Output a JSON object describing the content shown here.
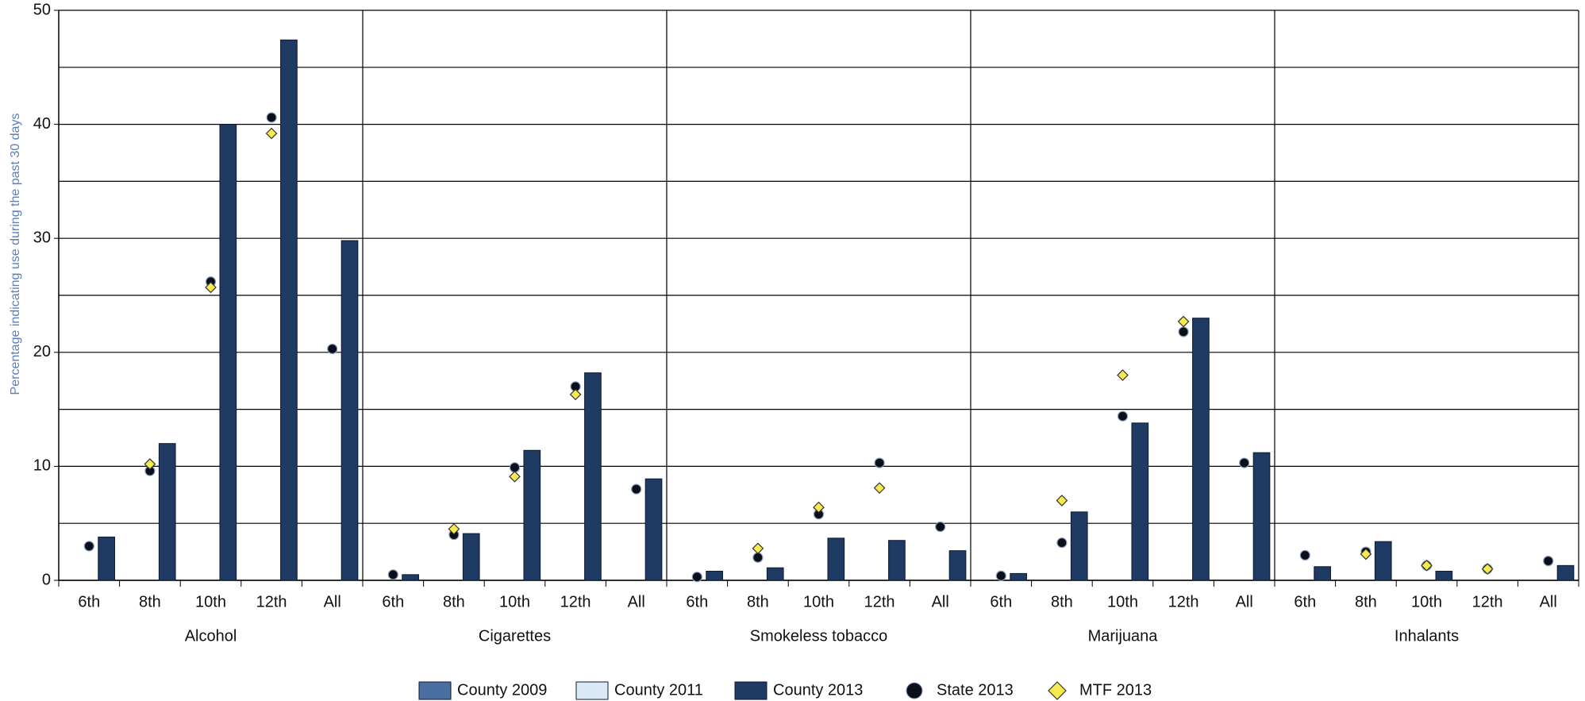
{
  "chart_data": {
    "type": "grouped-bar",
    "y_axis_label": "Percentage indicating use during the past 30 days",
    "groups": [
      "Alcohol",
      "Cigarettes",
      "Smokeless tobacco",
      "Marijuana",
      "Inhalants"
    ],
    "categories": [
      "6th",
      "8th",
      "10th",
      "12th",
      "All"
    ],
    "ylim": [
      0,
      50
    ],
    "yticks": [
      0,
      10,
      20,
      30,
      40,
      50
    ],
    "yticks_minor": [
      5,
      15,
      25,
      35,
      45
    ],
    "grid": true,
    "legend": "bottom",
    "series": [
      {
        "name": "County 2009",
        "kind": "bar",
        "color": "#4a6fa0",
        "values": [
          [
            null,
            null,
            null,
            null,
            null
          ],
          [
            null,
            null,
            null,
            null,
            null
          ],
          [
            null,
            null,
            null,
            null,
            null
          ],
          [
            null,
            null,
            null,
            null,
            null
          ],
          [
            null,
            null,
            null,
            null,
            null
          ]
        ]
      },
      {
        "name": "County 2011",
        "kind": "bar",
        "color": "#dceaf8",
        "values": [
          [
            null,
            null,
            null,
            null,
            null
          ],
          [
            null,
            null,
            null,
            null,
            null
          ],
          [
            null,
            null,
            null,
            null,
            null
          ],
          [
            null,
            null,
            null,
            null,
            null
          ],
          [
            null,
            null,
            null,
            null,
            null
          ]
        ]
      },
      {
        "name": "County 2013",
        "kind": "bar",
        "color": "#1f3a63",
        "values": [
          [
            3.8,
            12.0,
            40.0,
            47.4,
            29.8
          ],
          [
            0.5,
            4.1,
            11.4,
            18.2,
            8.9
          ],
          [
            0.8,
            1.1,
            3.7,
            3.5,
            2.6
          ],
          [
            0.6,
            6.0,
            13.8,
            23.0,
            11.2
          ],
          [
            1.2,
            3.4,
            0.8,
            null,
            1.3
          ]
        ]
      },
      {
        "name": "State 2013",
        "kind": "marker",
        "marker": "circle",
        "color": "#0a0f1a",
        "values": [
          [
            3.0,
            9.6,
            26.2,
            40.6,
            20.3
          ],
          [
            0.5,
            4.0,
            9.9,
            17.0,
            8.0
          ],
          [
            0.3,
            2.0,
            5.8,
            10.3,
            4.7
          ],
          [
            0.4,
            3.3,
            14.4,
            21.8,
            10.3
          ],
          [
            2.2,
            2.5,
            1.3,
            1.0,
            1.7
          ]
        ]
      },
      {
        "name": "MTF 2013",
        "kind": "marker",
        "marker": "diamond",
        "color": "#f6ea4c",
        "values": [
          [
            null,
            10.2,
            25.7,
            39.2,
            null
          ],
          [
            null,
            4.5,
            9.1,
            16.3,
            null
          ],
          [
            null,
            2.8,
            6.4,
            8.1,
            null
          ],
          [
            null,
            7.0,
            18.0,
            22.7,
            null
          ],
          [
            null,
            2.3,
            1.3,
            1.0,
            null
          ]
        ]
      }
    ]
  }
}
